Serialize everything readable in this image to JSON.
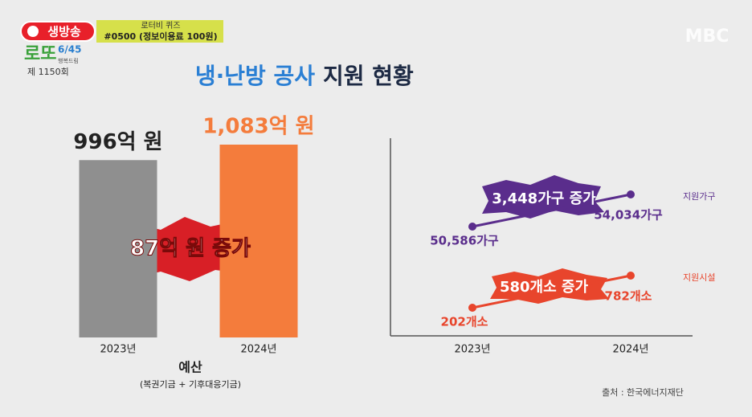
{
  "overlay": {
    "live": "생방송",
    "lotto": "로또",
    "lotto_game": "6/45",
    "lotto_brand": "행복드림",
    "round": "제 1150회",
    "quiz": "로터비 퀴즈",
    "quiz_number": "#0500 (정보이용료 100원)",
    "channel": "MBC"
  },
  "title": [
    "냉·난방 공사",
    "지원 현황"
  ],
  "chart_data": [
    {
      "type": "bar",
      "categories": [
        "2023년",
        "2024년"
      ],
      "values": [
        996,
        1083
      ],
      "value_labels": [
        "996억 원",
        "1,083억 원"
      ],
      "colors": [
        "#8f8f8f",
        "#f47c3c"
      ],
      "annotation": "87억 원 증가",
      "x_label": "예산",
      "subtitle": "(복권기금 + 기후대응기금)"
    },
    {
      "type": "line",
      "categories": [
        "2023년",
        "2024년"
      ],
      "series": [
        {
          "name": "지원가구",
          "color": "#5a2d8c",
          "values": [
            50586,
            54034
          ],
          "value_labels": [
            "50,586가구",
            "54,034가구"
          ],
          "annotation": "3,448가구 증가"
        },
        {
          "name": "지원시설",
          "color": "#e8452c",
          "values": [
            202,
            782
          ],
          "value_labels": [
            "202개소",
            "782개소"
          ],
          "annotation": "580개소 증가"
        }
      ]
    }
  ],
  "source": "출처 : 한국에너지재단"
}
